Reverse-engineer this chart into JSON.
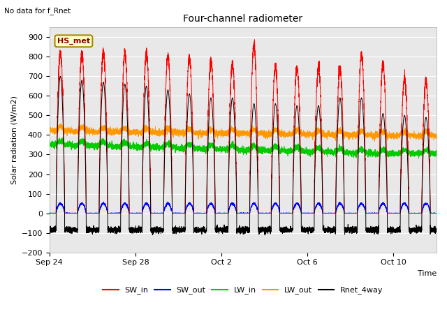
{
  "title": "Four-channel radiometer",
  "top_left_text": "No data for f_Rnet",
  "annotation_box": "HS_met",
  "ylabel": "Solar radiation (W/m2)",
  "xlabel": "Time",
  "ylim": [
    -200,
    950
  ],
  "yticks": [
    -200,
    -100,
    0,
    100,
    200,
    300,
    400,
    500,
    600,
    700,
    800,
    900
  ],
  "xtick_labels": [
    "Sep 24",
    "Sep 28",
    "Oct 2",
    "Oct 6",
    "Oct 10"
  ],
  "xtick_positions": [
    0,
    4,
    8,
    12,
    16
  ],
  "colors": {
    "SW_in": "#ff0000",
    "SW_out": "#0000ff",
    "LW_in": "#00cc00",
    "LW_out": "#ff9900",
    "Rnet_4way": "#000000"
  },
  "legend": [
    "SW_in",
    "SW_out",
    "LW_in",
    "LW_out",
    "Rnet_4way"
  ],
  "fig_bg_color": "#ffffff",
  "plot_bg_color": "#e8e8e8",
  "n_days": 18,
  "samples_per_day": 288
}
